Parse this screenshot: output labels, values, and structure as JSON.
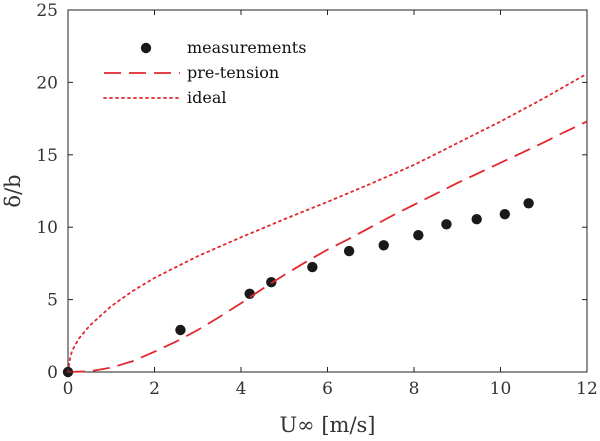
{
  "chart_data": {
    "type": "line",
    "xlabel": "U∞ [m/s]",
    "ylabel": "δ/b",
    "xlim": [
      0,
      12
    ],
    "ylim": [
      0,
      25
    ],
    "xticks": [
      0,
      2,
      4,
      6,
      8,
      10,
      12
    ],
    "yticks": [
      0,
      5,
      10,
      15,
      20,
      25
    ],
    "grid": false,
    "legend": "top-left",
    "series": [
      {
        "name": "measurements",
        "style": "scatter",
        "color": "#1a1a1a",
        "points": [
          {
            "x": 0.0,
            "y": 0.0
          },
          {
            "x": 2.6,
            "y": 2.9
          },
          {
            "x": 4.2,
            "y": 5.4
          },
          {
            "x": 4.7,
            "y": 6.2
          },
          {
            "x": 5.65,
            "y": 7.25
          },
          {
            "x": 6.5,
            "y": 8.35
          },
          {
            "x": 7.3,
            "y": 8.75
          },
          {
            "x": 8.1,
            "y": 9.45
          },
          {
            "x": 8.75,
            "y": 10.2
          },
          {
            "x": 9.45,
            "y": 10.55
          },
          {
            "x": 10.1,
            "y": 10.9
          },
          {
            "x": 10.65,
            "y": 11.65
          }
        ]
      },
      {
        "name": "pre-tension",
        "style": "dashed",
        "color": "#e0282e",
        "points": [
          {
            "x": 0.0,
            "y": 0.0
          },
          {
            "x": 0.5,
            "y": 0.05
          },
          {
            "x": 1.0,
            "y": 0.3
          },
          {
            "x": 1.5,
            "y": 0.75
          },
          {
            "x": 2.0,
            "y": 1.4
          },
          {
            "x": 2.5,
            "y": 2.1
          },
          {
            "x": 3.0,
            "y": 2.9
          },
          {
            "x": 3.5,
            "y": 3.8
          },
          {
            "x": 4.0,
            "y": 4.75
          },
          {
            "x": 4.5,
            "y": 5.75
          },
          {
            "x": 5.0,
            "y": 6.7
          },
          {
            "x": 5.5,
            "y": 7.6
          },
          {
            "x": 6.0,
            "y": 8.45
          },
          {
            "x": 6.5,
            "y": 9.2
          },
          {
            "x": 7.0,
            "y": 10.0
          },
          {
            "x": 7.5,
            "y": 10.8
          },
          {
            "x": 8.0,
            "y": 11.55
          },
          {
            "x": 8.5,
            "y": 12.3
          },
          {
            "x": 9.0,
            "y": 13.05
          },
          {
            "x": 9.5,
            "y": 13.75
          },
          {
            "x": 10.0,
            "y": 14.45
          },
          {
            "x": 10.5,
            "y": 15.15
          },
          {
            "x": 11.0,
            "y": 15.85
          },
          {
            "x": 11.5,
            "y": 16.6
          },
          {
            "x": 12.0,
            "y": 17.3
          }
        ]
      },
      {
        "name": "ideal",
        "style": "dotted",
        "color": "#e0282e",
        "points": [
          {
            "x": 0.0,
            "y": 0.0
          },
          {
            "x": 0.05,
            "y": 1.0
          },
          {
            "x": 0.1,
            "y": 1.5
          },
          {
            "x": 0.25,
            "y": 2.3
          },
          {
            "x": 0.5,
            "y": 3.2
          },
          {
            "x": 1.0,
            "y": 4.55
          },
          {
            "x": 1.5,
            "y": 5.6
          },
          {
            "x": 2.0,
            "y": 6.5
          },
          {
            "x": 3.0,
            "y": 8.0
          },
          {
            "x": 4.0,
            "y": 9.3
          },
          {
            "x": 5.0,
            "y": 10.55
          },
          {
            "x": 6.0,
            "y": 11.75
          },
          {
            "x": 7.0,
            "y": 13.0
          },
          {
            "x": 8.0,
            "y": 14.3
          },
          {
            "x": 9.0,
            "y": 15.8
          },
          {
            "x": 10.0,
            "y": 17.3
          },
          {
            "x": 11.0,
            "y": 18.9
          },
          {
            "x": 12.0,
            "y": 20.6
          }
        ]
      }
    ]
  }
}
